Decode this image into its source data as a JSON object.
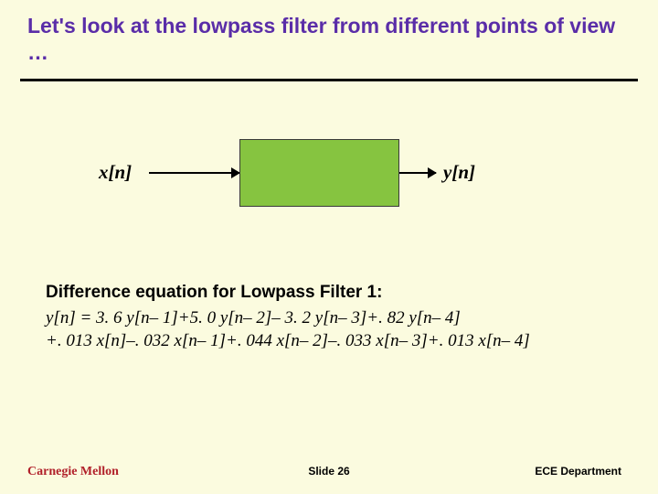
{
  "title": "Let's look at the lowpass filter from different points of view …",
  "diagram": {
    "input_label": "x[n]",
    "output_label": "y[n]",
    "block_color": "#86c440"
  },
  "equation": {
    "heading": "Difference equation for Lowpass Filter 1:",
    "line1": "y[n] = 3. 6 y[n– 1]+5. 0 y[n– 2]– 3. 2 y[n– 3]+. 82 y[n– 4]",
    "line2": "+. 013 x[n]–. 032 x[n– 1]+. 044 x[n– 2]–. 033 x[n– 3]+. 013 x[n– 4]"
  },
  "footer": {
    "logo": "Carnegie Mellon",
    "slide": "Slide 26",
    "dept": "ECE Department"
  },
  "colors": {
    "background": "#fbfbdf",
    "title": "#5a2da8",
    "logo": "#b1202a",
    "rule": "#000000"
  }
}
